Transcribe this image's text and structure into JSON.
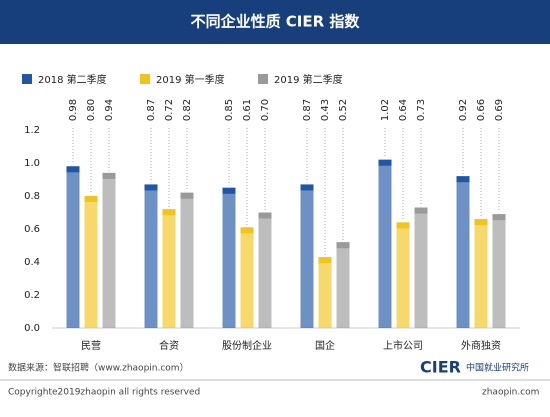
{
  "chart_data": {
    "type": "bar",
    "title": "不同企业性质 CIER 指数",
    "categories": [
      "民营",
      "合资",
      "股份制企业",
      "国企",
      "上市公司",
      "外商独资"
    ],
    "series": [
      {
        "name": "2018 第二季度",
        "color": "#1f56a6",
        "values": [
          0.98,
          0.87,
          0.85,
          0.87,
          1.02,
          0.92
        ],
        "value_labels": [
          "0.98",
          "0.87",
          "0.85",
          "0.87",
          "1.02",
          "0.92"
        ]
      },
      {
        "name": "2019 第一季度",
        "color": "#f2c31a",
        "values": [
          0.8,
          0.72,
          0.61,
          0.43,
          0.64,
          0.66
        ],
        "value_labels": [
          "0.80",
          "0.72",
          "0.61",
          "0.43",
          "0.64",
          "0.66"
        ]
      },
      {
        "name": "2019 第二季度",
        "color": "#9a9a9a",
        "values": [
          0.94,
          0.82,
          0.7,
          0.52,
          0.73,
          0.69
        ],
        "value_labels": [
          "0.94",
          "0.82",
          "0.70",
          "0.52",
          "0.73",
          "0.69"
        ]
      }
    ],
    "ylim": [
      0,
      1.2
    ],
    "yticks": [
      {
        "value": 0,
        "label": "0.0"
      },
      0.2,
      0.4,
      0.6,
      0.8,
      {
        "value": 1,
        "label": "1.0"
      },
      1.2
    ],
    "grid": false,
    "source": "数据来源：智联招聘（www.zhaopin.com）",
    "copyright": "Copyrighte2019zhaopin all rights reserved",
    "logo_cier": "CIER",
    "logo_cier_sub": "中国就业研究所",
    "logo_zhaopin": "zhaopin.com"
  }
}
